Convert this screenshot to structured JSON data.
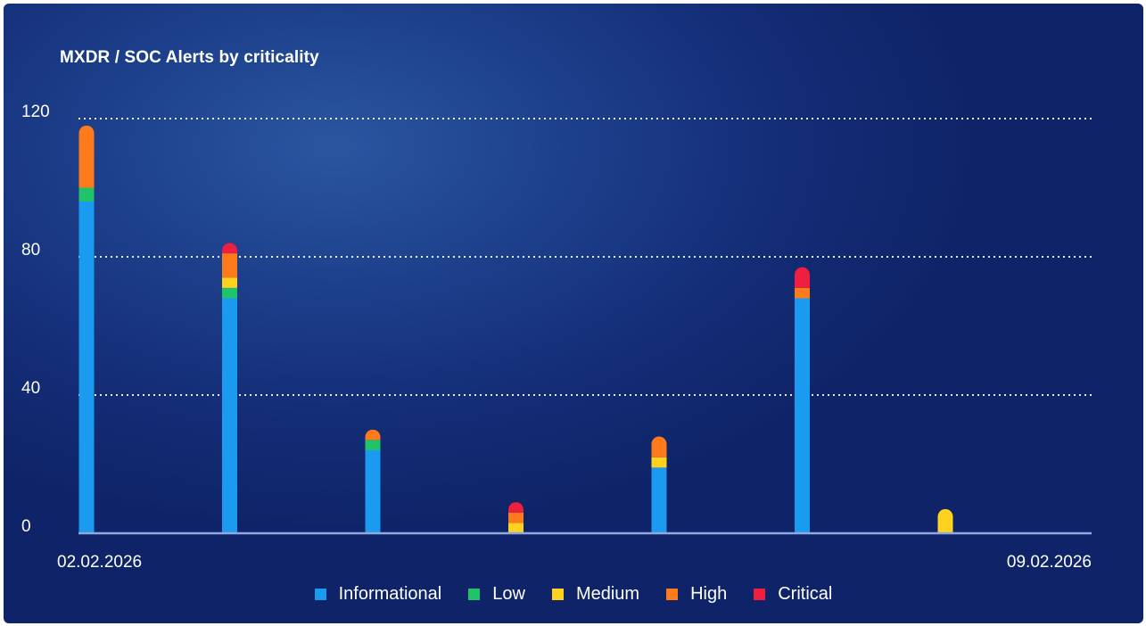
{
  "chart_data": {
    "type": "bar",
    "stacked": true,
    "title": "MXDR / SOC Alerts by criticality",
    "xlabel": "",
    "ylabel": "",
    "x_tick_labels": {
      "first": "02.02.2026",
      "last": "09.02.2026"
    },
    "ylim": [
      0,
      120
    ],
    "yticks": [
      0,
      40,
      80,
      120
    ],
    "grid": "horizontal dotted",
    "legend_position": "bottom",
    "colors": {
      "Informational": "#1b9bf0",
      "Low": "#1fc46a",
      "Medium": "#ffd21f",
      "High": "#ff7a1a",
      "Critical": "#ee1f3f",
      "background": "#1a3a86",
      "axis": "#8fa9e0",
      "grid": "#ffffff"
    },
    "series": [
      {
        "name": "Informational",
        "values": [
          96,
          68,
          24,
          0,
          19,
          68,
          0
        ]
      },
      {
        "name": "Low",
        "values": [
          4,
          3,
          3,
          0,
          0,
          0,
          0
        ]
      },
      {
        "name": "Medium",
        "values": [
          0,
          3,
          0,
          3,
          3,
          0,
          7
        ]
      },
      {
        "name": "High",
        "values": [
          18,
          7,
          3,
          3,
          6,
          3,
          0
        ]
      },
      {
        "name": "Critical",
        "values": [
          0,
          3,
          0,
          3,
          0,
          6,
          0
        ]
      }
    ]
  }
}
